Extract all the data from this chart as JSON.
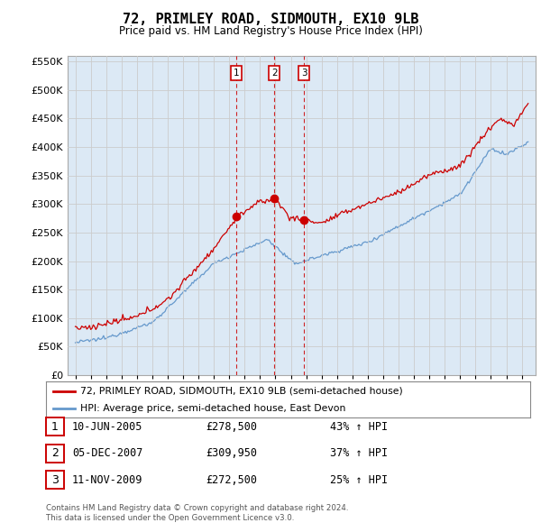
{
  "title": "72, PRIMLEY ROAD, SIDMOUTH, EX10 9LB",
  "subtitle": "Price paid vs. HM Land Registry's House Price Index (HPI)",
  "legend_line1": "72, PRIMLEY ROAD, SIDMOUTH, EX10 9LB (semi-detached house)",
  "legend_line2": "HPI: Average price, semi-detached house, East Devon",
  "transactions": [
    {
      "num": 1,
      "date": "10-JUN-2005",
      "price": 278500,
      "year": 2005.44,
      "pct": "43%",
      "dir": "↑"
    },
    {
      "num": 2,
      "date": "05-DEC-2007",
      "price": 309950,
      "year": 2007.92,
      "pct": "37%",
      "dir": "↑"
    },
    {
      "num": 3,
      "date": "11-NOV-2009",
      "price": 272500,
      "year": 2009.86,
      "pct": "25%",
      "dir": "↑"
    }
  ],
  "footer1": "Contains HM Land Registry data © Crown copyright and database right 2024.",
  "footer2": "This data is licensed under the Open Government Licence v3.0.",
  "red_color": "#cc0000",
  "blue_color": "#6699cc",
  "vline_color": "#cc0000",
  "grid_color": "#cccccc",
  "chart_bg": "#dce9f5",
  "background_color": "#ffffff",
  "ylim": [
    0,
    560000
  ],
  "yticks": [
    0,
    50000,
    100000,
    150000,
    200000,
    250000,
    300000,
    350000,
    400000,
    450000,
    500000,
    550000
  ]
}
